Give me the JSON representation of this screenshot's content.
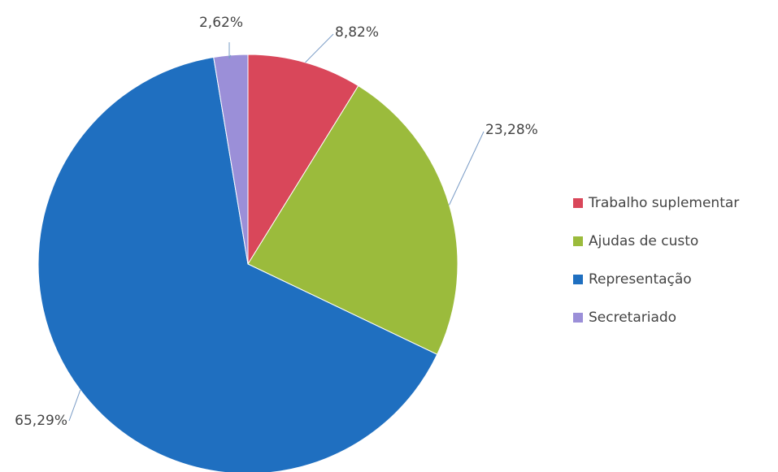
{
  "chart_data": {
    "type": "pie",
    "categories": [
      "Trabalho suplementar",
      "Ajudas de custo",
      "Representação",
      "Secretariado"
    ],
    "values": [
      8.82,
      23.28,
      65.29,
      2.62
    ],
    "value_labels": [
      "8,82%",
      "23,28%",
      "65,29%",
      "2,62%"
    ],
    "colors": [
      "#d9475a",
      "#9bbb3c",
      "#1f6fc0",
      "#9b8fd8"
    ],
    "legend": "right"
  }
}
